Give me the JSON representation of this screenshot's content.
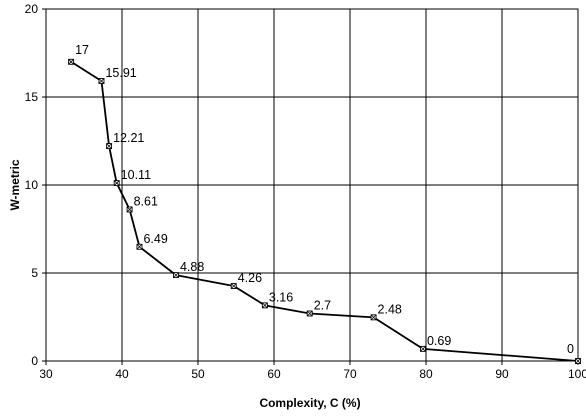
{
  "chart_data": {
    "type": "line",
    "title": "",
    "xlabel": "Complexity, C (%)",
    "ylabel": "W-metric",
    "xlim": [
      30,
      100
    ],
    "ylim": [
      0,
      20
    ],
    "x_ticks": [
      "30",
      "40",
      "50",
      "60",
      "70",
      "80",
      "90",
      "100"
    ],
    "y_ticks": [
      "0",
      "5",
      "10",
      "15",
      "20"
    ],
    "grid": true,
    "legend": "none",
    "series": [
      {
        "x": [
          33.3,
          37.3,
          38.3,
          39.3,
          41,
          42.3,
          47.1,
          54.7,
          58.8,
          64.7,
          73.1,
          79.6,
          100
        ],
        "y": [
          17,
          15.91,
          12.21,
          10.11,
          8.61,
          6.49,
          4.88,
          4.26,
          3.16,
          2.7,
          2.48,
          0.69,
          0
        ],
        "labels": [
          "17",
          "15.91",
          "12.21",
          "10.11",
          "8.61",
          "6.49",
          "4.88",
          "4.26",
          "3.16",
          "2.7",
          "2.48",
          "0.69",
          "0"
        ]
      }
    ],
    "colors": {
      "line": "#000000",
      "grid": "#000000",
      "frame": "#000000"
    },
    "marker": "x-square"
  }
}
